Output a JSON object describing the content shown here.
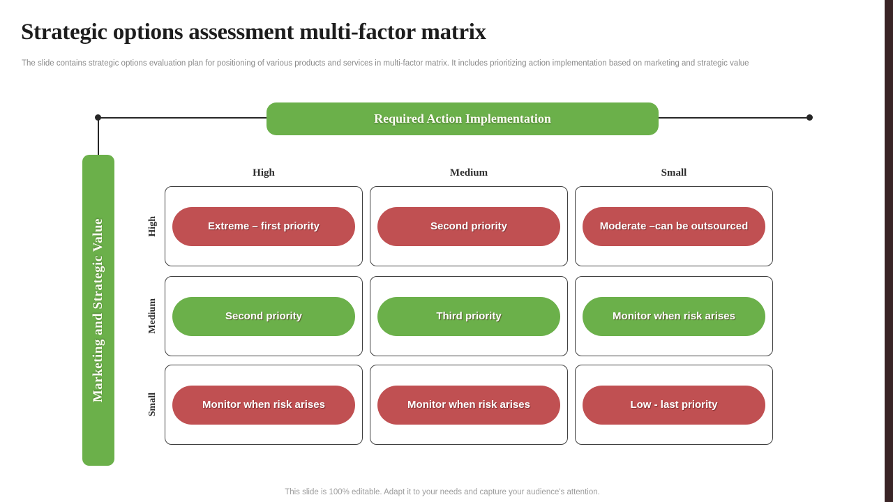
{
  "slide": {
    "title": "Strategic options assessment multi-factor matrix",
    "subtitle": "The slide contains strategic options evaluation plan for positioning of various products and services in multi-factor matrix. It includes prioritizing action implementation based on marketing and strategic value",
    "footer": "This slide is 100% editable. Adapt it to your needs and capture your audience's attention."
  },
  "axes": {
    "top": "Required Action Implementation",
    "left": "Marketing and Strategic Value"
  },
  "columns": [
    "High",
    "Medium",
    "Small"
  ],
  "rows": [
    "High",
    "Medium",
    "Small"
  ],
  "matrix": {
    "cells": [
      [
        {
          "label": "Extreme – first priority",
          "bg": "#c05052"
        },
        {
          "label": "Second priority",
          "bg": "#c05052"
        },
        {
          "label": "Moderate –can be outsourced",
          "bg": "#c05052"
        }
      ],
      [
        {
          "label": "Second priority",
          "bg": "#6bb04a"
        },
        {
          "label": "Third priority",
          "bg": "#6bb04a"
        },
        {
          "label": "Monitor when risk arises",
          "bg": "#6bb04a"
        }
      ],
      [
        {
          "label": "Monitor when risk arises",
          "bg": "#c05052"
        },
        {
          "label": "Monitor when risk arises",
          "bg": "#c05052"
        },
        {
          "label": "Low - last priority",
          "bg": "#c05052"
        }
      ]
    ]
  },
  "colors": {
    "green": "#6bb04a",
    "red": "#c05052",
    "line": "#262626",
    "edge_strip": "#3a2426"
  }
}
